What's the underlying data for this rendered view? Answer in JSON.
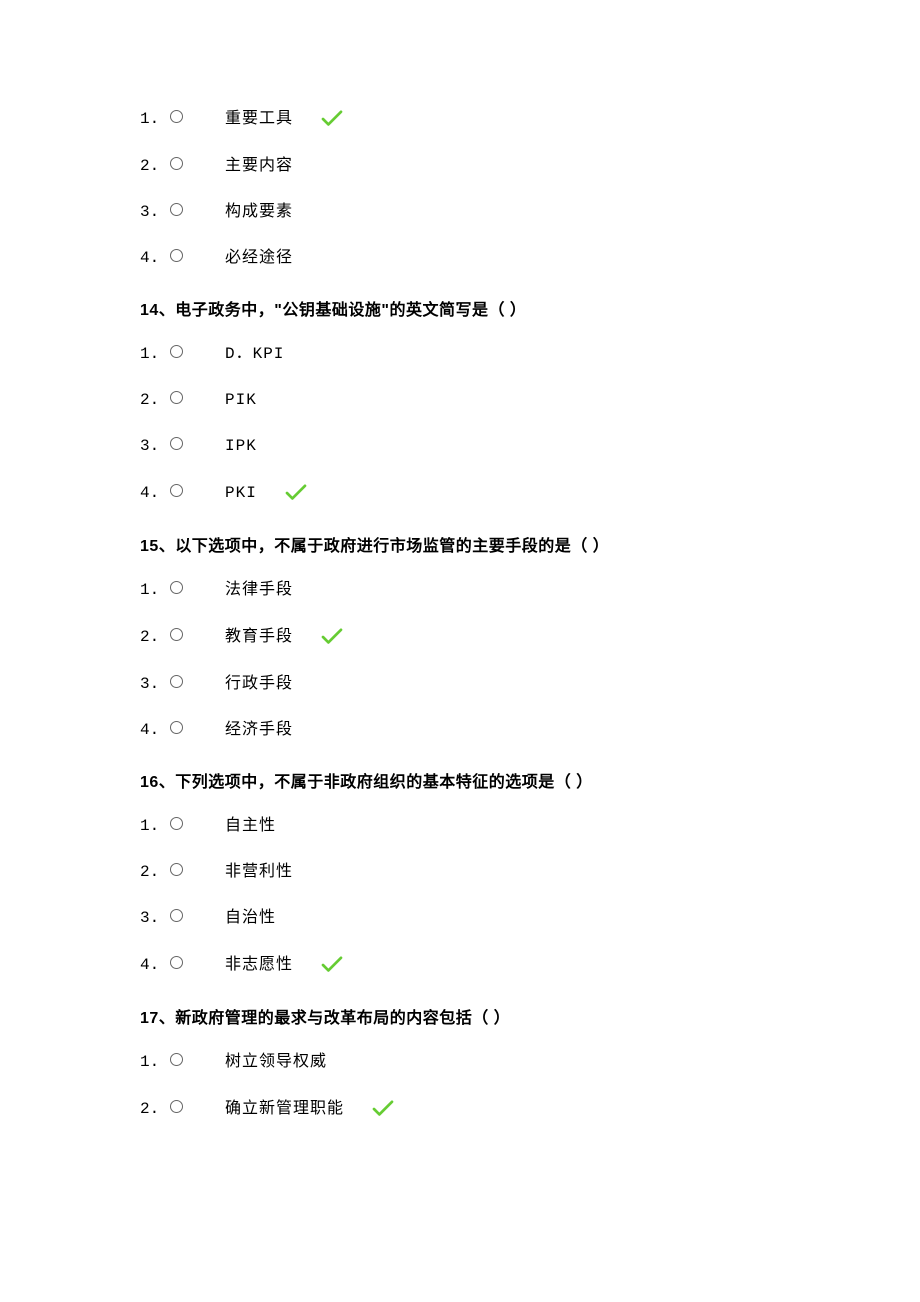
{
  "colors": {
    "text": "#000000",
    "background": "#ffffff",
    "radio_border": "#666666",
    "check_stroke": "#66cc33"
  },
  "questions": [
    {
      "stem": null,
      "options": [
        {
          "num": "1.",
          "text": "重要工具",
          "correct": true
        },
        {
          "num": "2.",
          "text": "主要内容",
          "correct": false
        },
        {
          "num": "3.",
          "text": "构成要素",
          "correct": false
        },
        {
          "num": "4.",
          "text": "必经途径",
          "correct": false
        }
      ]
    },
    {
      "stem": "14、电子政务中，\"公钥基础设施\"的英文简写是（         ）",
      "options": [
        {
          "num": "1.",
          "text": "D．KPI",
          "correct": false,
          "mono": true
        },
        {
          "num": "2.",
          "text": "PIK",
          "correct": false,
          "mono": true
        },
        {
          "num": "3.",
          "text": "IPK",
          "correct": false,
          "mono": true
        },
        {
          "num": "4.",
          "text": "PKI",
          "correct": true,
          "mono": true
        }
      ]
    },
    {
      "stem": "15、以下选项中，不属于政府进行市场监管的主要手段的是（         ）",
      "options": [
        {
          "num": "1.",
          "text": "法律手段",
          "correct": false
        },
        {
          "num": "2.",
          "text": "教育手段",
          "correct": true
        },
        {
          "num": "3.",
          "text": "行政手段",
          "correct": false
        },
        {
          "num": "4.",
          "text": "经济手段",
          "correct": false
        }
      ]
    },
    {
      "stem": "16、下列选项中，不属于非政府组织的基本特征的选项是（   ）",
      "options": [
        {
          "num": "1.",
          "text": "自主性",
          "correct": false
        },
        {
          "num": "2.",
          "text": "非营利性",
          "correct": false
        },
        {
          "num": "3.",
          "text": "自治性",
          "correct": false
        },
        {
          "num": "4.",
          "text": "非志愿性",
          "correct": true
        }
      ]
    },
    {
      "stem": "17、新政府管理的最求与改革布局的内容包括（   ）",
      "options": [
        {
          "num": "1.",
          "text": "树立领导权威",
          "correct": false
        },
        {
          "num": "2.",
          "text": "确立新管理职能",
          "correct": true
        }
      ]
    }
  ]
}
